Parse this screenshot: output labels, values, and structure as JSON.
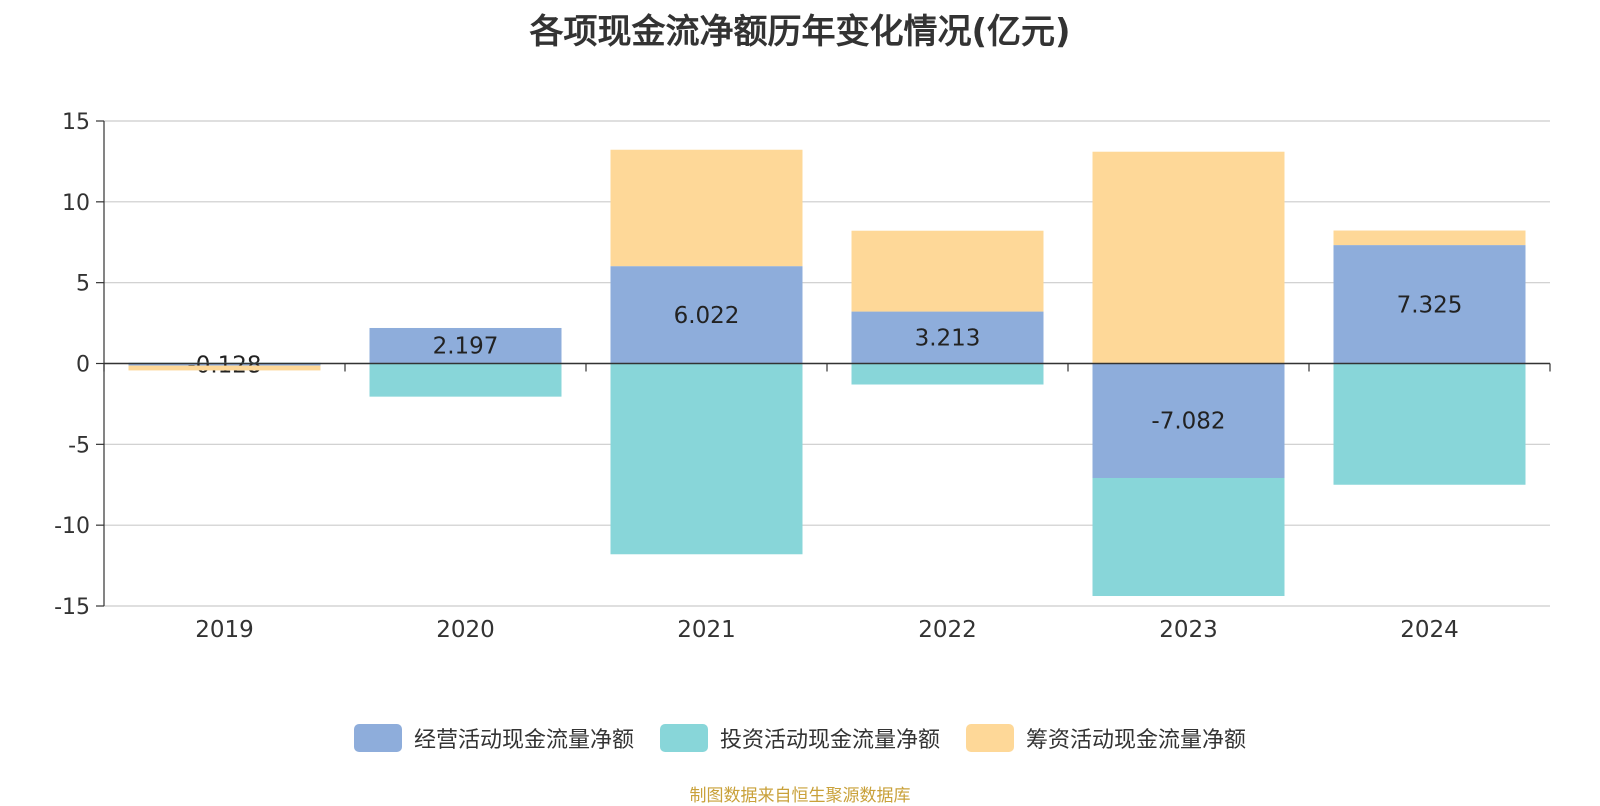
{
  "chart_data": {
    "type": "bar",
    "stacked": true,
    "title": "各项现金流净额历年变化情况(亿元)",
    "categories": [
      "2019",
      "2020",
      "2021",
      "2022",
      "2023",
      "2024"
    ],
    "series": [
      {
        "name": "经营活动现金流量净额",
        "color": "#8eaddb",
        "values": [
          -0.128,
          2.197,
          6.022,
          3.213,
          -7.082,
          7.325
        ],
        "labels": [
          "-0.128",
          "2.197",
          "6.022",
          "3.213",
          "-7.082",
          "7.325"
        ]
      },
      {
        "name": "投资活动现金流量净额",
        "color": "#88d6d9",
        "values": [
          0.05,
          -2.05,
          -11.8,
          -1.3,
          -7.3,
          -7.5
        ]
      },
      {
        "name": "筹资活动现金流量净额",
        "color": "#fed898",
        "values": [
          -0.3,
          0.0,
          7.2,
          5.0,
          13.1,
          0.9
        ]
      }
    ],
    "ylim": [
      -15,
      15
    ],
    "yticks": [
      15,
      10,
      5,
      0,
      -5,
      -10,
      -15
    ],
    "grid": true,
    "legend_position": "bottom"
  },
  "source_text": "制图数据来自恒生聚源数据库",
  "source_color": "#c9a13a"
}
